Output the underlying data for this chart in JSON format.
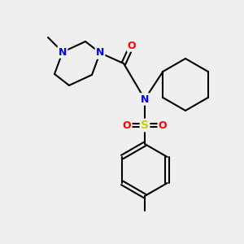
{
  "background_color": "#efefef",
  "atom_colors": {
    "N": "#0000ff",
    "O": "#ff0000",
    "S": "#cccc00",
    "C": "#000000"
  },
  "bond_color": "#000000",
  "bond_lw": 1.5,
  "font_size": 9,
  "font_family": "DejaVu Sans"
}
